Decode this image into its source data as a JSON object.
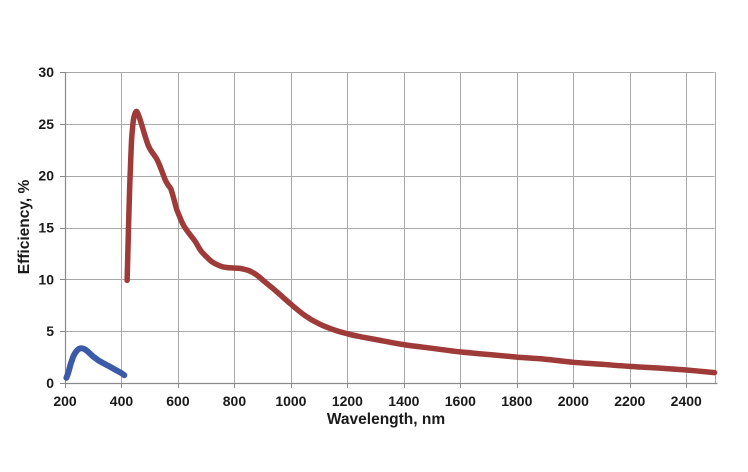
{
  "chart_data": {
    "type": "line",
    "title": "",
    "xlabel": "Wavelength, nm",
    "ylabel": "Efficiency, %",
    "xlim": [
      200,
      2500
    ],
    "ylim": [
      0,
      30
    ],
    "x_ticks": [
      200,
      400,
      600,
      800,
      1000,
      1200,
      1400,
      1600,
      1800,
      2000,
      2200,
      2400
    ],
    "y_ticks": [
      0,
      5,
      10,
      15,
      20,
      25,
      30
    ],
    "grid": true,
    "legend": "none",
    "colors": {
      "gridline": "#A9A9A9",
      "axis": "#898989",
      "text": "#1A1A1A",
      "background": "#FFFFFF",
      "blue_series": "#3B5BA9",
      "red_series": "#9E3B39"
    },
    "series": [
      {
        "name": "blue-curve",
        "color": "#3B5BA9",
        "width": 6,
        "points": [
          [
            205,
            0.5
          ],
          [
            210,
            0.85
          ],
          [
            215,
            1.3
          ],
          [
            220,
            1.8
          ],
          [
            230,
            2.6
          ],
          [
            240,
            3.05
          ],
          [
            250,
            3.3
          ],
          [
            260,
            3.35
          ],
          [
            270,
            3.25
          ],
          [
            280,
            3.05
          ],
          [
            290,
            2.8
          ],
          [
            300,
            2.55
          ],
          [
            310,
            2.35
          ],
          [
            320,
            2.15
          ],
          [
            340,
            1.85
          ],
          [
            360,
            1.55
          ],
          [
            380,
            1.25
          ],
          [
            400,
            0.95
          ],
          [
            410,
            0.75
          ]
        ]
      },
      {
        "name": "red-curve",
        "color": "#9E3B39",
        "width": 5.5,
        "points": [
          [
            420,
            9.9
          ],
          [
            422,
            12
          ],
          [
            425,
            15
          ],
          [
            428,
            18
          ],
          [
            432,
            21
          ],
          [
            436,
            23.5
          ],
          [
            442,
            25.3
          ],
          [
            448,
            26
          ],
          [
            453,
            26.2
          ],
          [
            458,
            26
          ],
          [
            465,
            25.5
          ],
          [
            475,
            24.6
          ],
          [
            485,
            23.7
          ],
          [
            495,
            22.9
          ],
          [
            505,
            22.4
          ],
          [
            515,
            22
          ],
          [
            525,
            21.6
          ],
          [
            535,
            21
          ],
          [
            545,
            20.3
          ],
          [
            555,
            19.6
          ],
          [
            565,
            19.1
          ],
          [
            575,
            18.7
          ],
          [
            585,
            17.8
          ],
          [
            595,
            16.8
          ],
          [
            605,
            16.1
          ],
          [
            620,
            15.2
          ],
          [
            640,
            14.4
          ],
          [
            660,
            13.7
          ],
          [
            680,
            12.8
          ],
          [
            700,
            12.2
          ],
          [
            720,
            11.7
          ],
          [
            740,
            11.4
          ],
          [
            760,
            11.2
          ],
          [
            790,
            11.1
          ],
          [
            820,
            11.05
          ],
          [
            850,
            10.85
          ],
          [
            880,
            10.4
          ],
          [
            910,
            9.7
          ],
          [
            950,
            8.8
          ],
          [
            1000,
            7.6
          ],
          [
            1050,
            6.5
          ],
          [
            1100,
            5.7
          ],
          [
            1150,
            5.15
          ],
          [
            1200,
            4.75
          ],
          [
            1250,
            4.45
          ],
          [
            1300,
            4.2
          ],
          [
            1400,
            3.7
          ],
          [
            1500,
            3.35
          ],
          [
            1600,
            3.0
          ],
          [
            1700,
            2.75
          ],
          [
            1800,
            2.5
          ],
          [
            1900,
            2.3
          ],
          [
            2000,
            2.0
          ],
          [
            2100,
            1.8
          ],
          [
            2200,
            1.6
          ],
          [
            2300,
            1.45
          ],
          [
            2400,
            1.25
          ],
          [
            2500,
            1.0
          ]
        ]
      }
    ]
  }
}
